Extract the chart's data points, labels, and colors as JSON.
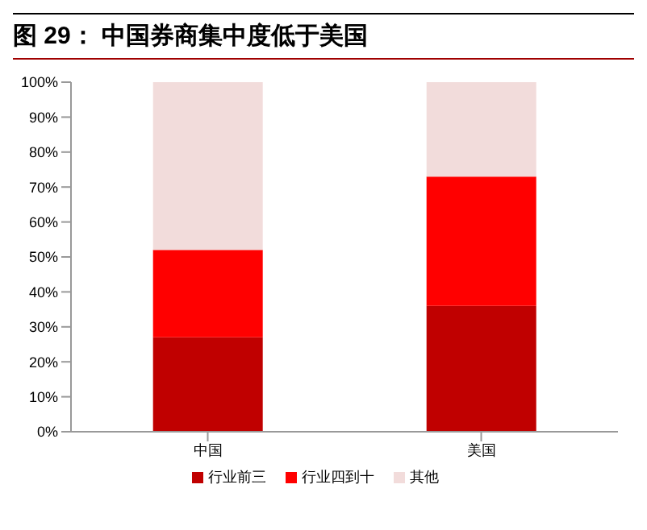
{
  "chart_data": {
    "type": "bar",
    "title": "图 29：  中国券商集中度低于美国",
    "stacked": true,
    "categories": [
      "中国",
      "美国"
    ],
    "series": [
      {
        "name": "行业前三",
        "color": "#c00000",
        "values": [
          27,
          36
        ]
      },
      {
        "name": "行业四到十",
        "color": "#ff0000",
        "values": [
          25,
          37
        ]
      },
      {
        "name": "其他",
        "color": "#f2dcdb",
        "values": [
          48,
          27
        ]
      }
    ],
    "ylim": [
      0,
      100
    ],
    "yticks": [
      {
        "value": 0,
        "label": "0%"
      },
      {
        "value": 10,
        "label": "10%"
      },
      {
        "value": 20,
        "label": "20%"
      },
      {
        "value": 30,
        "label": "30%"
      },
      {
        "value": 40,
        "label": "40%"
      },
      {
        "value": 50,
        "label": "50%"
      },
      {
        "value": 60,
        "label": "60%"
      },
      {
        "value": 70,
        "label": "70%"
      },
      {
        "value": 80,
        "label": "80%"
      },
      {
        "value": 90,
        "label": "90%"
      },
      {
        "value": 100,
        "label": "100%"
      }
    ],
    "grid": false,
    "legend": "bottom"
  }
}
